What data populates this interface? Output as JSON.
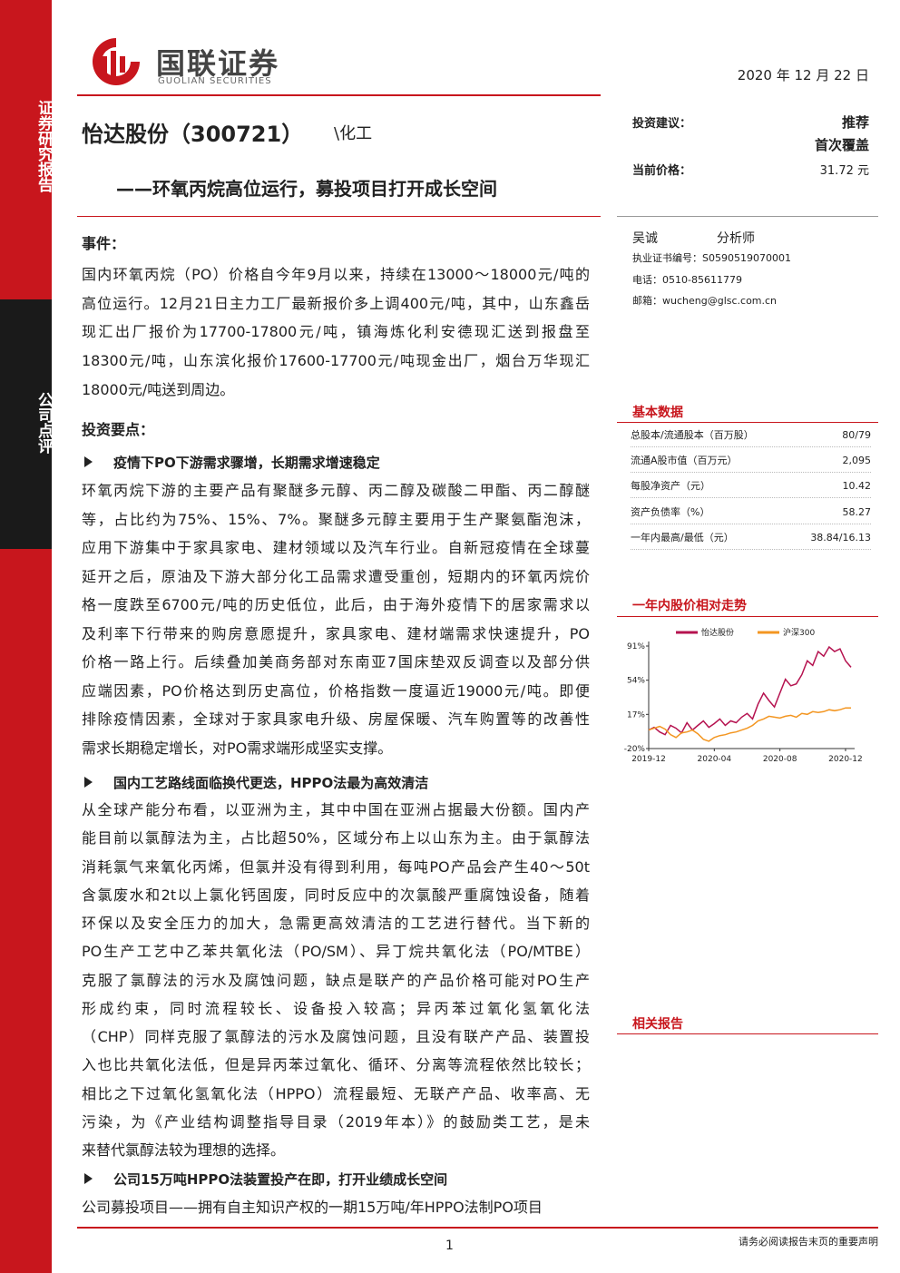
{
  "sidebar": {
    "top": "证券研究报告",
    "middle": "公司点评"
  },
  "header": {
    "logo_name": "国联证券",
    "logo_en": "GUOLIAN SECURITIES",
    "date": "2020 年 12 月 22 日",
    "company": "怡达股份（300721）",
    "industry": "\\化工",
    "subtitle": "——环氧丙烷高位运行，募投项目打开成长空间"
  },
  "rating": {
    "label": "投资建议：",
    "value": "推荐",
    "note": "首次覆盖",
    "price_label": "当前价格：",
    "price": "31.72 元"
  },
  "analyst": {
    "name": "吴诚",
    "role": "分析师",
    "license": "执业证书编号：S0590519070001",
    "phone": "电话：0510-85611779",
    "email": "邮箱：wucheng@glsc.com.cn"
  },
  "basic_data": {
    "title": "基本数据",
    "rows": [
      [
        "总股本/流通股本（百万股）",
        "80/79"
      ],
      [
        "流通A股市值（百万元）",
        "2,095"
      ],
      [
        "每股净资产（元）",
        "10.42"
      ],
      [
        "资产负债率（%）",
        "58.27"
      ],
      [
        "一年内最高/最低（元）",
        "38.84/16.13"
      ]
    ]
  },
  "chart_data": {
    "type": "line",
    "title": "一年内股价相对走势",
    "series": [
      {
        "name": "怡达股份",
        "color": "#b5124f",
        "values": [
          0,
          3,
          -2,
          -5,
          5,
          2,
          -3,
          8,
          0,
          5,
          10,
          3,
          7,
          12,
          5,
          10,
          8,
          14,
          18,
          12,
          28,
          40,
          32,
          25,
          40,
          55,
          48,
          50,
          60,
          75,
          70,
          85,
          80,
          90,
          85,
          88,
          75,
          68
        ]
      },
      {
        "name": "沪深300",
        "color": "#f39621",
        "values": [
          0,
          2,
          4,
          1,
          -5,
          -8,
          -3,
          -2,
          0,
          -4,
          -10,
          -12,
          -8,
          -6,
          -5,
          -3,
          -2,
          0,
          2,
          5,
          10,
          12,
          15,
          14,
          13,
          15,
          16,
          14,
          18,
          17,
          20,
          19,
          20,
          22,
          21,
          22,
          24,
          24
        ]
      }
    ],
    "xlim": [
      0,
      37
    ],
    "xticks": [
      {
        "value": 0,
        "label": "2019-12"
      },
      {
        "value": 12,
        "label": "2020-04"
      },
      {
        "value": 24,
        "label": "2020-08"
      },
      {
        "value": 36,
        "label": "2020-12"
      }
    ],
    "ylim": [
      -20,
      91
    ],
    "yticks": [
      {
        "value": 91,
        "label": "91%"
      },
      {
        "value": 54,
        "label": "54%"
      },
      {
        "value": 17,
        "label": "17%"
      },
      {
        "value": -20,
        "label": "-20%"
      }
    ]
  },
  "related": {
    "title": "相关报告"
  },
  "body": {
    "event_title": "事件：",
    "event_lines": [
      "国内环氧丙烷（PO）价格自今年9月以来，持续在13000～18000元/吨的",
      "高位运行。12月21日主力工厂最新报价多上调400元/吨，其中，山东鑫岳",
      "现汇出厂报价为17700-17800元/吨，镇海炼化利安德现汇送到报盘至",
      "18300元/吨，山东滨化报价17600-17700元/吨现金出厂，烟台万华现汇",
      "18000元/吨送到周边。"
    ],
    "points_title": "投资要点：",
    "sections": [
      {
        "heading": "疫情下PO下游需求骤增，长期需求增速稳定",
        "lines": [
          "环氧丙烷下游的主要产品有聚醚多元醇、丙二醇及碳酸二甲酯、丙二醇醚",
          "等，占比约为75%、15%、7%。聚醚多元醇主要用于生产聚氨酯泡沫，",
          "应用下游集中于家具家电、建材领域以及汽车行业。自新冠疫情在全球蔓",
          "延开之后，原油及下游大部分化工品需求遭受重创，短期内的环氧丙烷价",
          "格一度跌至6700元/吨的历史低位，此后，由于海外疫情下的居家需求以",
          "及利率下行带来的购房意愿提升，家具家电、建材端需求快速提升，PO",
          "价格一路上行。后续叠加美商务部对东南亚7国床垫双反调查以及部分供",
          "应端因素，PO价格达到历史高位，价格指数一度逼近19000元/吨。即便",
          "排除疫情因素，全球对于家具家电升级、房屋保暖、汽车购置等的改善性",
          "需求长期稳定增长，对PO需求端形成坚实支撑。"
        ]
      },
      {
        "heading": "国内工艺路线面临换代更迭，HPPO法最为高效清洁",
        "lines": [
          "从全球产能分布看，以亚洲为主，其中中国在亚洲占据最大份额。国内产",
          "能目前以氯醇法为主，占比超50%，区域分布上以山东为主。由于氯醇法",
          "消耗氯气来氧化丙烯，但氯并没有得到利用，每吨PO产品会产生40～50t",
          "含氯废水和2t以上氯化钙固废，同时反应中的次氯酸严重腐蚀设备，随着",
          "环保以及安全压力的加大，急需更高效清洁的工艺进行替代。当下新的",
          "PO生产工艺中乙苯共氧化法（PO/SM）、异丁烷共氧化法（PO/MTBE）",
          "克服了氯醇法的污水及腐蚀问题，缺点是联产的产品价格可能对PO生产",
          "形成约束，同时流程较长、设备投入较高；异丙苯过氧化氢氧化法",
          "（CHP）同样克服了氯醇法的污水及腐蚀问题，且没有联产产品、装置投",
          "入也比共氧化法低，但是异丙苯过氧化、循环、分离等流程依然比较长；",
          "相比之下过氧化氢氧化法（HPPO）流程最短、无联产产品、收率高、无",
          "污染，为《产业结构调整指导目录（2019年本）》的鼓励类工艺，是未",
          "来替代氯醇法较为理想的选择。"
        ]
      },
      {
        "heading": "公司15万吨HPPO法装置投产在即，打开业绩成长空间",
        "lines": [
          "公司募投项目——拥有自主知识产权的一期15万吨/年HPPO法制PO项目"
        ]
      }
    ]
  },
  "footer": {
    "page": "1",
    "disclaimer": "请务必阅读报告末页的重要声明"
  }
}
